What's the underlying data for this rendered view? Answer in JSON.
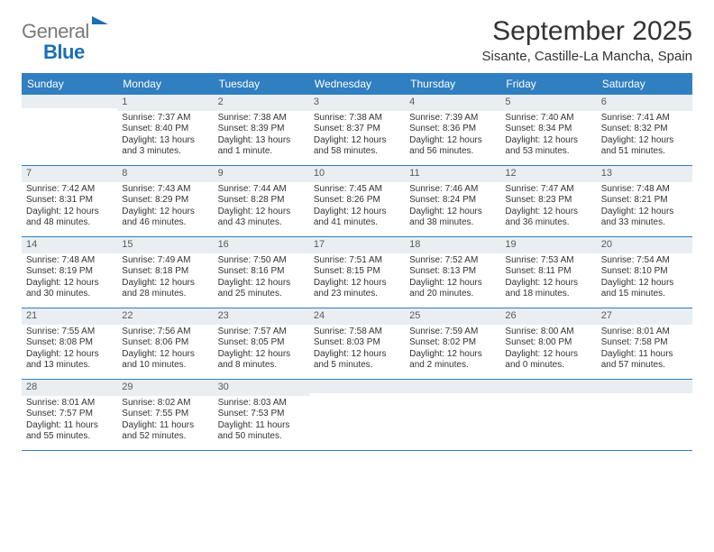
{
  "brand": {
    "part1": "General",
    "part2": "Blue"
  },
  "title": "September 2025",
  "location": "Sisante, Castille-La Mancha, Spain",
  "colors": {
    "header_bg": "#2f7fc1",
    "header_text": "#ffffff",
    "daynum_bg": "#e9eef3",
    "rule": "#2f7fc1",
    "logo_gray": "#7a7a7a",
    "logo_blue": "#1a6fb5"
  },
  "weekdays": [
    "Sunday",
    "Monday",
    "Tuesday",
    "Wednesday",
    "Thursday",
    "Friday",
    "Saturday"
  ],
  "cells": [
    [
      {
        "day": "",
        "lines": []
      },
      {
        "day": "1",
        "lines": [
          "Sunrise: 7:37 AM",
          "Sunset: 8:40 PM",
          "Daylight: 13 hours and 3 minutes."
        ]
      },
      {
        "day": "2",
        "lines": [
          "Sunrise: 7:38 AM",
          "Sunset: 8:39 PM",
          "Daylight: 13 hours and 1 minute."
        ]
      },
      {
        "day": "3",
        "lines": [
          "Sunrise: 7:38 AM",
          "Sunset: 8:37 PM",
          "Daylight: 12 hours and 58 minutes."
        ]
      },
      {
        "day": "4",
        "lines": [
          "Sunrise: 7:39 AM",
          "Sunset: 8:36 PM",
          "Daylight: 12 hours and 56 minutes."
        ]
      },
      {
        "day": "5",
        "lines": [
          "Sunrise: 7:40 AM",
          "Sunset: 8:34 PM",
          "Daylight: 12 hours and 53 minutes."
        ]
      },
      {
        "day": "6",
        "lines": [
          "Sunrise: 7:41 AM",
          "Sunset: 8:32 PM",
          "Daylight: 12 hours and 51 minutes."
        ]
      }
    ],
    [
      {
        "day": "7",
        "lines": [
          "Sunrise: 7:42 AM",
          "Sunset: 8:31 PM",
          "Daylight: 12 hours and 48 minutes."
        ]
      },
      {
        "day": "8",
        "lines": [
          "Sunrise: 7:43 AM",
          "Sunset: 8:29 PM",
          "Daylight: 12 hours and 46 minutes."
        ]
      },
      {
        "day": "9",
        "lines": [
          "Sunrise: 7:44 AM",
          "Sunset: 8:28 PM",
          "Daylight: 12 hours and 43 minutes."
        ]
      },
      {
        "day": "10",
        "lines": [
          "Sunrise: 7:45 AM",
          "Sunset: 8:26 PM",
          "Daylight: 12 hours and 41 minutes."
        ]
      },
      {
        "day": "11",
        "lines": [
          "Sunrise: 7:46 AM",
          "Sunset: 8:24 PM",
          "Daylight: 12 hours and 38 minutes."
        ]
      },
      {
        "day": "12",
        "lines": [
          "Sunrise: 7:47 AM",
          "Sunset: 8:23 PM",
          "Daylight: 12 hours and 36 minutes."
        ]
      },
      {
        "day": "13",
        "lines": [
          "Sunrise: 7:48 AM",
          "Sunset: 8:21 PM",
          "Daylight: 12 hours and 33 minutes."
        ]
      }
    ],
    [
      {
        "day": "14",
        "lines": [
          "Sunrise: 7:48 AM",
          "Sunset: 8:19 PM",
          "Daylight: 12 hours and 30 minutes."
        ]
      },
      {
        "day": "15",
        "lines": [
          "Sunrise: 7:49 AM",
          "Sunset: 8:18 PM",
          "Daylight: 12 hours and 28 minutes."
        ]
      },
      {
        "day": "16",
        "lines": [
          "Sunrise: 7:50 AM",
          "Sunset: 8:16 PM",
          "Daylight: 12 hours and 25 minutes."
        ]
      },
      {
        "day": "17",
        "lines": [
          "Sunrise: 7:51 AM",
          "Sunset: 8:15 PM",
          "Daylight: 12 hours and 23 minutes."
        ]
      },
      {
        "day": "18",
        "lines": [
          "Sunrise: 7:52 AM",
          "Sunset: 8:13 PM",
          "Daylight: 12 hours and 20 minutes."
        ]
      },
      {
        "day": "19",
        "lines": [
          "Sunrise: 7:53 AM",
          "Sunset: 8:11 PM",
          "Daylight: 12 hours and 18 minutes."
        ]
      },
      {
        "day": "20",
        "lines": [
          "Sunrise: 7:54 AM",
          "Sunset: 8:10 PM",
          "Daylight: 12 hours and 15 minutes."
        ]
      }
    ],
    [
      {
        "day": "21",
        "lines": [
          "Sunrise: 7:55 AM",
          "Sunset: 8:08 PM",
          "Daylight: 12 hours and 13 minutes."
        ]
      },
      {
        "day": "22",
        "lines": [
          "Sunrise: 7:56 AM",
          "Sunset: 8:06 PM",
          "Daylight: 12 hours and 10 minutes."
        ]
      },
      {
        "day": "23",
        "lines": [
          "Sunrise: 7:57 AM",
          "Sunset: 8:05 PM",
          "Daylight: 12 hours and 8 minutes."
        ]
      },
      {
        "day": "24",
        "lines": [
          "Sunrise: 7:58 AM",
          "Sunset: 8:03 PM",
          "Daylight: 12 hours and 5 minutes."
        ]
      },
      {
        "day": "25",
        "lines": [
          "Sunrise: 7:59 AM",
          "Sunset: 8:02 PM",
          "Daylight: 12 hours and 2 minutes."
        ]
      },
      {
        "day": "26",
        "lines": [
          "Sunrise: 8:00 AM",
          "Sunset: 8:00 PM",
          "Daylight: 12 hours and 0 minutes."
        ]
      },
      {
        "day": "27",
        "lines": [
          "Sunrise: 8:01 AM",
          "Sunset: 7:58 PM",
          "Daylight: 11 hours and 57 minutes."
        ]
      }
    ],
    [
      {
        "day": "28",
        "lines": [
          "Sunrise: 8:01 AM",
          "Sunset: 7:57 PM",
          "Daylight: 11 hours and 55 minutes."
        ]
      },
      {
        "day": "29",
        "lines": [
          "Sunrise: 8:02 AM",
          "Sunset: 7:55 PM",
          "Daylight: 11 hours and 52 minutes."
        ]
      },
      {
        "day": "30",
        "lines": [
          "Sunrise: 8:03 AM",
          "Sunset: 7:53 PM",
          "Daylight: 11 hours and 50 minutes."
        ]
      },
      {
        "day": "",
        "lines": []
      },
      {
        "day": "",
        "lines": []
      },
      {
        "day": "",
        "lines": []
      },
      {
        "day": "",
        "lines": []
      }
    ]
  ]
}
